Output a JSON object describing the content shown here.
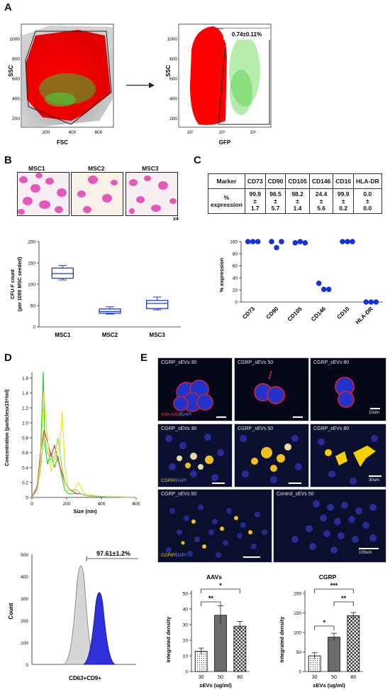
{
  "panels": {
    "A": "A",
    "B": "B",
    "C": "C",
    "D": "D",
    "E": "E"
  },
  "panelA": {
    "left": {
      "xlabel": "FSC",
      "ylabel": "SSC",
      "xticks": [
        "200",
        "400",
        "600"
      ],
      "yticks": [
        "200",
        "400",
        "600",
        "800",
        "1000"
      ]
    },
    "right": {
      "xlabel": "GFP",
      "ylabel": "SSC",
      "xticks": [
        "10²",
        "10³",
        "10⁴"
      ],
      "yticks": [
        "200",
        "400",
        "600",
        "800",
        "1000"
      ],
      "gate_value": "0.74±0.11%"
    }
  },
  "panelB": {
    "stains": [
      "MSC1",
      "MSC2",
      "MSC3"
    ],
    "magnification": "x4",
    "boxplot": {
      "ylabel_line1": "CFU-F count",
      "ylabel_line2": "(per 1000 MSC seeded)",
      "yticks": [
        "0",
        "50",
        "100",
        "150",
        "200"
      ],
      "color": "#1f3bd1"
    }
  },
  "panelC": {
    "table": {
      "header": [
        "Marker",
        "CD73",
        "CD90",
        "CD105",
        "CD146",
        "CD10",
        "HLA-DR"
      ],
      "row_label_lines": [
        "%",
        "expression"
      ],
      "cells": [
        [
          "99.9",
          "±",
          "1.7"
        ],
        [
          "96.5",
          "±",
          "5.7"
        ],
        [
          "98.2",
          "±",
          "1.4"
        ],
        [
          "24.4",
          "±",
          "5.6"
        ],
        [
          "99.9",
          "±",
          "0.2"
        ],
        [
          "0.0",
          "±",
          "0.0"
        ]
      ]
    },
    "dotplot": {
      "ylabel": "% expression",
      "yticks": [
        "0",
        "20",
        "40",
        "60",
        "80",
        "100"
      ],
      "color": "#1733d6"
    }
  },
  "panelD": {
    "nta": {
      "ylabel": "Concentration (particlesx10⁹/ml)",
      "xlabel": "Size (nm)",
      "yticks": [
        "0",
        "0.2",
        "0.4",
        "0.6",
        "0.8",
        "1.0",
        "1.2",
        "1.4",
        "1.6"
      ],
      "xticks": [
        "0",
        "200",
        "400",
        "600"
      ]
    },
    "flow": {
      "ylabel": "Count",
      "xlabel": "CD63+CD9+",
      "yticks": [
        "0",
        "100",
        "200",
        "300",
        "400",
        "500"
      ],
      "gate_value": "97.61±1.2%"
    }
  },
  "panelE": {
    "row1": [
      {
        "caption": "CGRP_sEVs 30"
      },
      {
        "caption": "CGRP_sEVs 50"
      },
      {
        "caption": "CGRP_sEVs 80",
        "scale": "10um"
      }
    ],
    "row1_stain": {
      "part1": "Anti-AAV",
      "sep": "/",
      "part2": "DAPI"
    },
    "row2": [
      {
        "caption": "CGRP_sEVs 30"
      },
      {
        "caption": "CGRP_sEVs 50"
      },
      {
        "caption": "CGRP_sEVs 80",
        "scale": "30um"
      }
    ],
    "row2_stain": {
      "part1": "CGRP",
      "sep": "/",
      "part2": "DAPI"
    },
    "row3": [
      {
        "caption": "CGRP_sEVs 50"
      },
      {
        "caption": "Control_sEVs 50",
        "scale": "100um"
      }
    ],
    "row3_stain": {
      "part1": "CGRP",
      "sep": "/",
      "part2": "DAPI"
    },
    "bar_aav": {
      "title": "AAVs",
      "ylabel": "Integrated density",
      "xlabel": "sEVs (ug/ml)",
      "yticks": [
        "0",
        "10",
        "20",
        "30",
        "40",
        "50"
      ],
      "sig": [
        "**",
        "*"
      ]
    },
    "bar_cgrp": {
      "title": "CGRP",
      "ylabel": "Integrated density",
      "xlabel": "sEVs (ug/ml)",
      "yticks": [
        "0",
        "50",
        "100",
        "150",
        "200"
      ],
      "sig": [
        "*",
        "**",
        "***"
      ]
    }
  },
  "chart_data": [
    {
      "type": "box",
      "panel": "B",
      "ylabel": "CFU-F count (per 1000 MSC seeded)",
      "ylim": [
        0,
        200
      ],
      "categories": [
        "MSC1",
        "MSC2",
        "MSC3"
      ],
      "boxes": [
        {
          "min": 110,
          "q1": 114,
          "median": 125,
          "q3": 138,
          "max": 144
        },
        {
          "min": 30,
          "q1": 32,
          "median": 36,
          "q3": 42,
          "max": 47
        },
        {
          "min": 40,
          "q1": 43,
          "median": 55,
          "q3": 62,
          "max": 70
        }
      ]
    },
    {
      "type": "scatter",
      "panel": "C",
      "ylabel": "% expression",
      "ylim": [
        0,
        100
      ],
      "categories": [
        "CD73",
        "CD90",
        "CD105",
        "CD146",
        "CD10",
        "HLA-DR"
      ],
      "points": [
        [
          100,
          100,
          100
        ],
        [
          100,
          90,
          100
        ],
        [
          98,
          100,
          98
        ],
        [
          31,
          21,
          21
        ],
        [
          100,
          100,
          100
        ],
        [
          0,
          0,
          0
        ]
      ]
    },
    {
      "type": "line",
      "panel": "D",
      "xlabel": "Size (nm)",
      "ylabel": "Concentration (particlesx10⁹/ml)",
      "xlim": [
        0,
        600
      ],
      "ylim": [
        0,
        1.6
      ],
      "series": [
        {
          "color": "#33cc33",
          "x": [
            0,
            30,
            50,
            65,
            75,
            90,
            110,
            130,
            150,
            170,
            190,
            210,
            240,
            280,
            320,
            400,
            600
          ],
          "y": [
            0,
            0.1,
            0.6,
            1.68,
            0.7,
            0.45,
            0.6,
            0.4,
            0.55,
            0.3,
            0.1,
            0.05,
            0.05,
            0.05,
            0.02,
            0.01,
            0
          ]
        },
        {
          "color": "#e23b3b",
          "x": [
            0,
            30,
            50,
            70,
            90,
            110,
            130,
            150,
            170,
            190,
            220,
            260,
            280,
            320,
            400,
            600
          ],
          "y": [
            0,
            0.15,
            0.6,
            0.9,
            0.75,
            0.55,
            0.7,
            0.5,
            0.35,
            0.2,
            0.1,
            0.05,
            0.05,
            0.02,
            0.01,
            0
          ]
        },
        {
          "color": "#e6e622",
          "x": [
            0,
            30,
            50,
            70,
            90,
            110,
            130,
            160,
            175,
            190,
            210,
            240,
            270,
            300,
            400,
            600
          ],
          "y": [
            0,
            0.1,
            0.5,
            1.4,
            0.8,
            0.35,
            0.5,
            0.7,
            1.15,
            0.4,
            0.1,
            0.1,
            0.2,
            0.05,
            0.01,
            0
          ]
        },
        {
          "color": "#8bd66e",
          "x": [
            0,
            30,
            50,
            70,
            90,
            110,
            130,
            150,
            170,
            190,
            220,
            260,
            280,
            320,
            400,
            600
          ],
          "y": [
            0,
            0.1,
            0.4,
            0.85,
            0.6,
            0.5,
            0.55,
            0.8,
            0.45,
            0.2,
            0.1,
            0.1,
            0.05,
            0.02,
            0.01,
            0
          ]
        }
      ]
    },
    {
      "type": "bar",
      "panel": "E",
      "title": "AAVs",
      "xlabel": "sEVs (ug/ml)",
      "ylabel": "Integrated density",
      "ylim": [
        0,
        50
      ],
      "categories": [
        "30",
        "50",
        "80"
      ],
      "values": [
        13,
        36,
        29
      ],
      "errors": [
        2,
        6,
        3
      ]
    },
    {
      "type": "bar",
      "panel": "E",
      "title": "CGRP",
      "xlabel": "sEVs (ug/ml)",
      "ylabel": "Integrated density",
      "ylim": [
        0,
        200
      ],
      "categories": [
        "30",
        "50",
        "80"
      ],
      "values": [
        40,
        88,
        143
      ],
      "errors": [
        8,
        10,
        8
      ]
    }
  ]
}
